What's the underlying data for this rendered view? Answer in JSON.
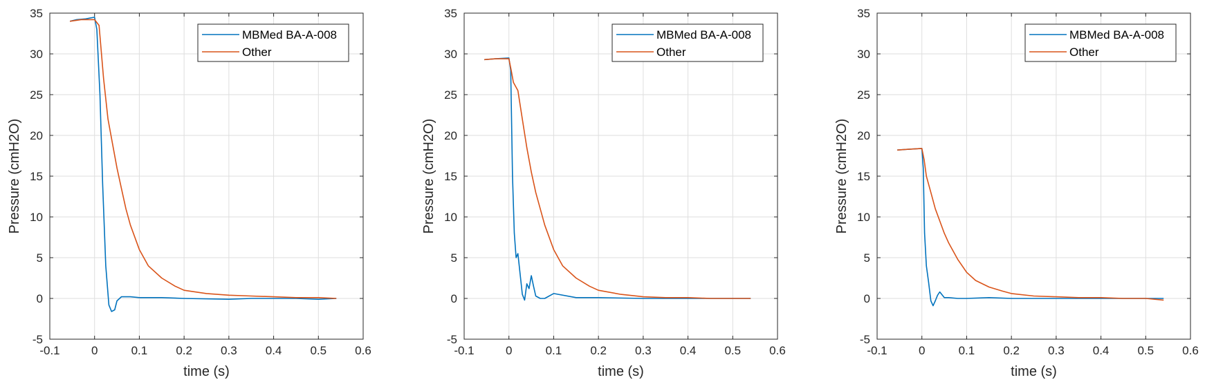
{
  "colors": {
    "series_1": "#0072BD",
    "series_2": "#D95319",
    "grid": "#dedede",
    "axis": "#262626"
  },
  "chart_data": [
    {
      "type": "line",
      "xlabel": "time (s)",
      "ylabel": "Pressure (cmH2O)",
      "xlim": [
        -0.1,
        0.6
      ],
      "ylim": [
        -5,
        35
      ],
      "xticks": [
        "-0.1",
        "0",
        "0.1",
        "0.2",
        "0.3",
        "0.4",
        "0.5",
        "0.6"
      ],
      "yticks": [
        "-5",
        "0",
        "5",
        "10",
        "15",
        "20",
        "25",
        "30",
        "35"
      ],
      "grid": true,
      "legend_position": "top-right",
      "series": [
        {
          "name": "MBMed BA-A-008",
          "x": [
            -0.055,
            -0.04,
            -0.02,
            0,
            0.005,
            0.012,
            0.018,
            0.025,
            0.032,
            0.038,
            0.045,
            0.05,
            0.06,
            0.08,
            0.1,
            0.15,
            0.2,
            0.3,
            0.35,
            0.4,
            0.45,
            0.5,
            0.54
          ],
          "y": [
            34,
            34.2,
            34.3,
            34.5,
            33,
            25,
            14,
            4,
            -0.8,
            -1.6,
            -1.4,
            -0.3,
            0.2,
            0.2,
            0.1,
            0.1,
            0.0,
            -0.1,
            0.0,
            0.0,
            0.0,
            -0.1,
            0.0
          ]
        },
        {
          "name": "Other",
          "x": [
            -0.055,
            -0.03,
            0,
            0.01,
            0.02,
            0.03,
            0.04,
            0.05,
            0.06,
            0.07,
            0.08,
            0.1,
            0.12,
            0.15,
            0.18,
            0.2,
            0.25,
            0.3,
            0.35,
            0.4,
            0.45,
            0.5,
            0.54
          ],
          "y": [
            34,
            34.2,
            34.2,
            33.5,
            27,
            22,
            19,
            16,
            13.5,
            11,
            9,
            6,
            4,
            2.5,
            1.5,
            1,
            0.6,
            0.4,
            0.3,
            0.2,
            0.1,
            0.1,
            0.0
          ]
        }
      ]
    },
    {
      "type": "line",
      "xlabel": "time (s)",
      "ylabel": "Pressure (cmH2O)",
      "xlim": [
        -0.1,
        0.6
      ],
      "ylim": [
        -5,
        35
      ],
      "xticks": [
        "-0.1",
        "0",
        "0.1",
        "0.2",
        "0.3",
        "0.4",
        "0.5",
        "0.6"
      ],
      "yticks": [
        "-5",
        "0",
        "5",
        "10",
        "15",
        "20",
        "25",
        "30",
        "35"
      ],
      "grid": true,
      "legend_position": "top-right",
      "series": [
        {
          "name": "MBMed BA-A-008",
          "x": [
            -0.055,
            -0.03,
            0,
            0.004,
            0.008,
            0.012,
            0.016,
            0.02,
            0.025,
            0.03,
            0.035,
            0.04,
            0.045,
            0.05,
            0.055,
            0.06,
            0.07,
            0.08,
            0.1,
            0.15,
            0.2,
            0.3,
            0.4,
            0.5,
            0.54
          ],
          "y": [
            29.3,
            29.4,
            29.5,
            28,
            15,
            8,
            5,
            5.5,
            3,
            0.5,
            -0.2,
            1.8,
            1.2,
            2.8,
            1.5,
            0.3,
            0.0,
            0.0,
            0.6,
            0.1,
            0.1,
            0.0,
            0.0,
            0.0,
            0.0
          ]
        },
        {
          "name": "Other",
          "x": [
            -0.055,
            -0.03,
            0,
            0.005,
            0.01,
            0.02,
            0.03,
            0.04,
            0.05,
            0.06,
            0.08,
            0.1,
            0.12,
            0.15,
            0.18,
            0.2,
            0.25,
            0.3,
            0.35,
            0.4,
            0.45,
            0.5,
            0.54
          ],
          "y": [
            29.3,
            29.4,
            29.4,
            28,
            26.5,
            25.5,
            22,
            18.5,
            15.5,
            13,
            9,
            6,
            4,
            2.5,
            1.5,
            1,
            0.5,
            0.2,
            0.1,
            0.1,
            0.0,
            0.0,
            0.0
          ]
        }
      ]
    },
    {
      "type": "line",
      "xlabel": "time (s)",
      "ylabel": "Pressure (cmH2O)",
      "xlim": [
        -0.1,
        0.6
      ],
      "ylim": [
        -5,
        35
      ],
      "xticks": [
        "-0.1",
        "0",
        "0.1",
        "0.2",
        "0.3",
        "0.4",
        "0.5",
        "0.6"
      ],
      "yticks": [
        "-5",
        "0",
        "5",
        "10",
        "15",
        "20",
        "25",
        "30",
        "35"
      ],
      "grid": true,
      "legend_position": "top-right",
      "series": [
        {
          "name": "MBMed BA-A-008",
          "x": [
            -0.055,
            -0.03,
            0,
            0.003,
            0.006,
            0.01,
            0.015,
            0.02,
            0.025,
            0.03,
            0.035,
            0.04,
            0.05,
            0.06,
            0.08,
            0.1,
            0.15,
            0.2,
            0.3,
            0.4,
            0.5,
            0.54
          ],
          "y": [
            18.2,
            18.3,
            18.4,
            16,
            8,
            4,
            2,
            -0.3,
            -0.9,
            -0.3,
            0.4,
            0.8,
            0.1,
            0.1,
            0.0,
            0.0,
            0.1,
            0.0,
            0.0,
            0.0,
            0.0,
            0.0
          ]
        },
        {
          "name": "Other",
          "x": [
            -0.055,
            -0.03,
            0,
            0.005,
            0.01,
            0.02,
            0.03,
            0.04,
            0.05,
            0.06,
            0.08,
            0.1,
            0.12,
            0.15,
            0.18,
            0.2,
            0.25,
            0.3,
            0.35,
            0.4,
            0.45,
            0.5,
            0.54
          ],
          "y": [
            18.2,
            18.3,
            18.4,
            17,
            15,
            13,
            11,
            9.5,
            8,
            6.8,
            4.8,
            3.2,
            2.2,
            1.4,
            0.9,
            0.6,
            0.3,
            0.2,
            0.1,
            0.1,
            0.0,
            0.0,
            -0.2
          ]
        }
      ]
    }
  ]
}
